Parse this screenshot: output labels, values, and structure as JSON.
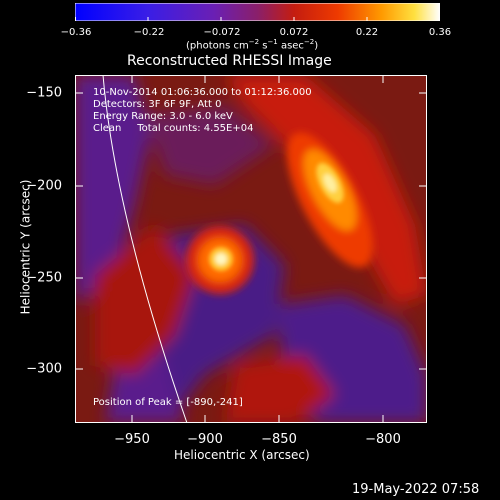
{
  "colorbar": {
    "ticks": [
      "−0.36",
      "−0.22",
      "−0.072",
      "0.072",
      "0.22",
      "0.36"
    ],
    "unit_prefix": "(photons cm",
    "unit_exp1": "−2",
    "unit_mid": " s",
    "unit_exp2": "−1",
    "unit_mid2": " asec",
    "unit_exp3": "−2",
    "unit_suffix": ")"
  },
  "plot": {
    "title": "Reconstructed RHESSI Image",
    "info_lines": [
      "10-Nov-2014 01:06:36.000 to 01:12:36.000",
      "Detectors: 3F 6F 9F, Att 0",
      "Energy Range: 3.0 - 6.0 keV",
      "Clean     Total counts: 4.55E+04"
    ],
    "peak_label": "Position of Peak = [-890,-241]",
    "xlabel": "Heliocentric X (arcsec)",
    "ylabel": "Heliocentric Y (arcsec)",
    "xticks": [
      "−950",
      "−900",
      "−850",
      "−800"
    ],
    "yticks": [
      "−150",
      "−200",
      "−250",
      "−300"
    ]
  },
  "footer": {
    "date": "19-May-2022 07:58"
  }
}
